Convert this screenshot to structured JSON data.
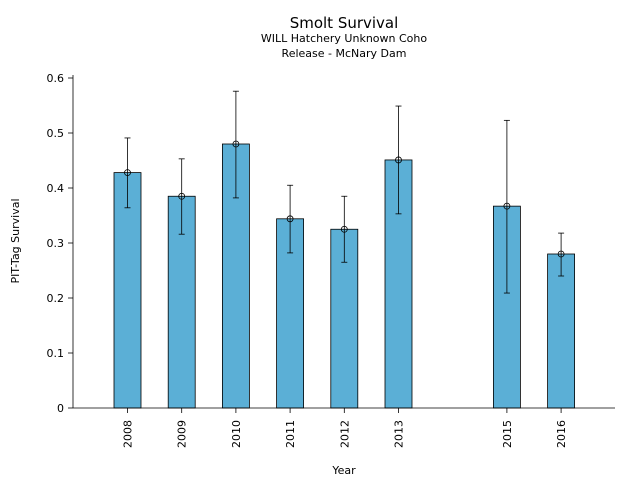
{
  "chart_data": {
    "type": "bar",
    "title": "Smolt Survival",
    "subtitle_lines": [
      "WILL Hatchery Unknown Coho",
      "Release - McNary Dam"
    ],
    "xlabel": "Year",
    "ylabel": "PIT-Tag Survival",
    "ylim": [
      0,
      0.6
    ],
    "yticks": [
      "0",
      "0.1",
      "0.2",
      "0.3",
      "0.4",
      "0.5",
      "0.6"
    ],
    "bar_color": "#5bafd6",
    "categories": [
      "2008",
      "2009",
      "2010",
      "2011",
      "2012",
      "2013",
      "2015",
      "2016"
    ],
    "values": [
      0.428,
      0.385,
      0.48,
      0.344,
      0.325,
      0.451,
      0.367,
      0.28
    ],
    "error_low": [
      0.364,
      0.316,
      0.382,
      0.282,
      0.265,
      0.353,
      0.209,
      0.24
    ],
    "error_high": [
      0.491,
      0.453,
      0.576,
      0.405,
      0.385,
      0.549,
      0.523,
      0.318
    ]
  }
}
